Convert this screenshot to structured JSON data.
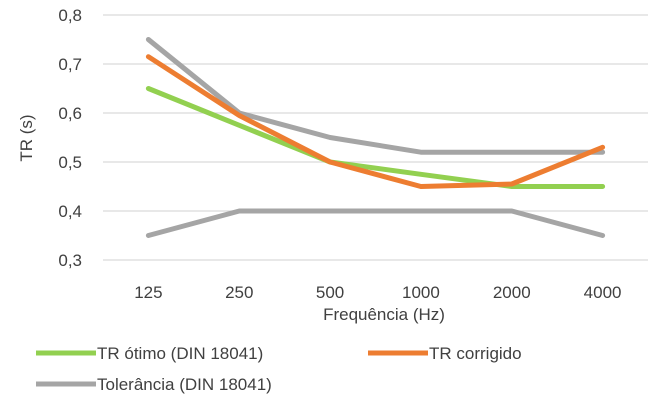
{
  "chart_data": {
    "type": "line",
    "title": "",
    "xlabel": "Frequência (Hz)",
    "ylabel": "TR (s)",
    "categories": [
      "125",
      "250",
      "500",
      "1000",
      "2000",
      "4000"
    ],
    "ylim": [
      0.3,
      0.8
    ],
    "yticks": [
      0.3,
      0.4,
      0.5,
      0.6,
      0.7,
      0.8
    ],
    "ytick_labels": [
      "0,3",
      "0,4",
      "0,5",
      "0,6",
      "0,7",
      "0,8"
    ],
    "grid": "horizontal",
    "legend_position": "bottom",
    "series": [
      {
        "name": "TR ótimo (DIN 18041)",
        "color": "#92d050",
        "values": [
          0.65,
          0.575,
          0.5,
          0.475,
          0.45,
          0.45
        ]
      },
      {
        "name": "TR corrigido",
        "color": "#ed7d31",
        "values": [
          0.715,
          0.595,
          0.5,
          0.45,
          0.455,
          0.53
        ]
      },
      {
        "name": "Tolerância (DIN 18041)",
        "color": "#a5a5a5",
        "values": [
          0.75,
          0.6,
          0.55,
          0.52,
          0.52,
          0.52
        ],
        "show_in_legend": true
      },
      {
        "name": "Tolerância (DIN 18041)",
        "color": "#a5a5a5",
        "values": [
          0.35,
          0.4,
          0.4,
          0.4,
          0.4,
          0.35
        ],
        "show_in_legend": false
      }
    ]
  }
}
